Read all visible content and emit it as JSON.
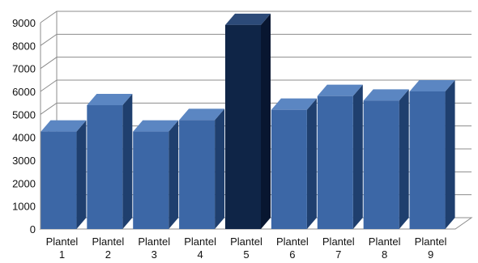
{
  "chart_data": {
    "type": "bar",
    "title": "",
    "xlabel": "",
    "ylabel": "",
    "categories": [
      [
        "Plantel",
        "1"
      ],
      [
        "Plantel",
        "2"
      ],
      [
        "Plantel",
        "3"
      ],
      [
        "Plantel",
        "4"
      ],
      [
        "Plantel",
        "5"
      ],
      [
        "Plantel",
        "6"
      ],
      [
        "Plantel",
        "7"
      ],
      [
        "Plantel",
        "8"
      ],
      [
        "Plantel",
        "9"
      ]
    ],
    "values": [
      4250,
      5400,
      4250,
      4750,
      8900,
      5200,
      5800,
      5600,
      6000
    ],
    "highlight_index": 4,
    "ylim": [
      0,
      9000
    ],
    "yticks": [
      0,
      1000,
      2000,
      3000,
      4000,
      5000,
      6000,
      7000,
      8000,
      9000
    ],
    "grid": true,
    "legend": "none",
    "three_d": true,
    "colors": {
      "bar_front": "#3c67a6",
      "bar_top": "#5b86c2",
      "bar_side": "#1f3f6e",
      "highlight_front": "#0f2547",
      "highlight_top": "#2c4a78",
      "highlight_side": "#081630",
      "grid": "#8c8c8c"
    }
  }
}
